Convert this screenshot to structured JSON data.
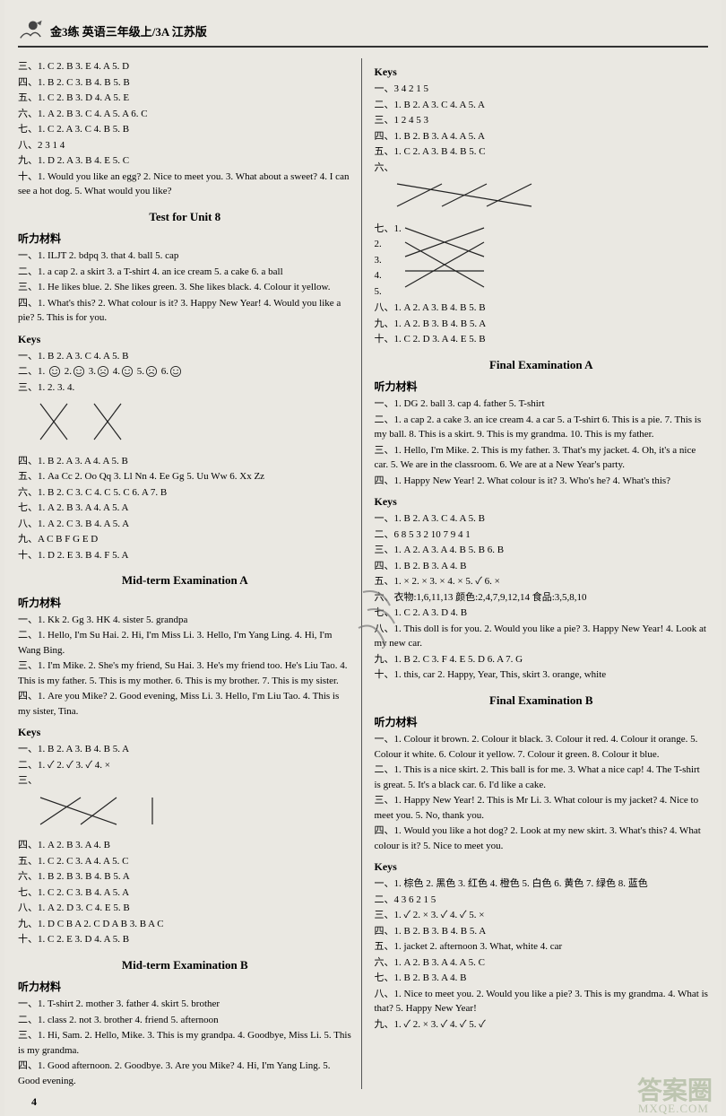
{
  "header": {
    "title": "金3练  英语三年级上/3A  江苏版"
  },
  "left": {
    "block1": [
      "三、1. C  2. B  3. E  4. A  5. D",
      "四、1. B  2. C  3. B  4. B  5. B",
      "五、1. C  2. B  3. D  4. A  5. E",
      "六、1. A  2. B  3. C  4. A  5. A  6. C",
      "七、1. C  2. A  3. C  4. B  5. B",
      "八、2 3 1 4",
      "九、1. D  2. A  3. B  4. E  5. C",
      "十、1. Would you like an egg?   2. Nice to meet you.   3. What about a sweet?   4. I can see a hot dog.   5. What would you like?"
    ],
    "unit8_title": "Test for Unit 8",
    "tl_label": "听力材料",
    "unit8_tl": [
      "一、1. ILJT  2. bdpq  3. that  4. ball  5. cap",
      "二、1. a cap  2. a skirt  3. a T-shirt  4. an ice cream  5. a cake  6. a ball",
      "三、1. He likes blue.   2. She likes green.   3. She likes black.  4. Colour it yellow.",
      "四、1. What's this?   2. What colour is it?   3. Happy New Year!   4. Would you like a pie?   5. This is for you."
    ],
    "keys_label": "Keys",
    "unit8_keys_a": [
      "一、1. B  2. A  3. C  4. A  5. B"
    ],
    "faces_prefix": "二、1.",
    "faces": [
      "happy",
      "happy",
      "sad",
      "happy",
      "sad",
      "happy"
    ],
    "unit8_matching_label": "三、1.  2.  3.  4.",
    "unit8_keys_b": [
      "四、1. B  2. A  3. A  4. A  5. B",
      "五、1. Aa  Cc  2. Oo  Qq  3. Ll  Nn  4. Ee  Gg  5. Uu  Ww  6. Xx  Zz",
      "六、1. B  2. C  3. C  4. C  5. C  6. A  7. B",
      "七、1. A  2. B  3. A  4. A  5. A",
      "八、1. A  2. C  3. B  4. A  5. A",
      "九、A C B F G E D",
      "十、1. D  2. E  3. B  4. F  5. A"
    ],
    "midA_title": "Mid-term Examination A",
    "midA_tl": [
      "一、1. Kk  2. Gg  3. HK  4. sister  5. grandpa",
      "二、1. Hello, I'm Su Hai.   2. Hi, I'm Miss Li.   3. Hello, I'm Yang Ling.   4. Hi, I'm Wang Bing.",
      "三、1. I'm Mike.   2. She's my friend, Su Hai.   3. He's my friend too. He's Liu Tao.   4. This is my father.   5. This is my mother.   6. This is my brother.   7. This is my sister.",
      "四、1. Are you Mike?   2. Good evening, Miss Li.   3. Hello, I'm Liu Tao.   4. This is my sister, Tina."
    ],
    "midA_keys_a": [
      "一、1. B  2. A  3. B  4. B  5. A",
      "二、1. ✓  2. ✓  3. ✓  4. ×"
    ],
    "midA_matching_label": "三、",
    "midA_keys_b": [
      "四、1. A  2. B  3. A  4. B",
      "五、1. C  2. C  3. A  4. A  5. C",
      "六、1. B  2. B  3. B  4. B  5. A",
      "七、1. C  2. C  3. B  4. A  5. A",
      "八、1. A  2. D  3. C  4. E  5. B",
      "九、1. D C B A  2. C D A B  3. B A C",
      "十、1. C  2. E  3. D  4. A  5. B"
    ],
    "midB_title": "Mid-term Examination B",
    "midB_tl": [
      "一、1. T-shirt  2. mother  3. father  4. skirt  5. brother",
      "二、1. class  2. not  3. brother  4. friend  5. afternoon",
      "三、1. Hi, Sam.   2. Hello, Mike.   3. This is my grandpa.  4. Goodbye, Miss Li.   5. This is my grandma.",
      "四、1. Good afternoon.   2. Goodbye.   3. Are you Mike?  4. Hi, I'm Yang Ling.   5. Good evening."
    ]
  },
  "right": {
    "keys_a": [
      "一、3 4 2 1 5",
      "二、1. B  2. A  3. C  4. A  5. A",
      "三、1 2 4 5 3",
      "四、1. B  2. B  3. A  4. A  5. A",
      "五、1. C  2. A  3. B  4. B  5. C"
    ],
    "matching6_label": "六、",
    "matching7_label": "七、1.",
    "matching7_nums": [
      "2.",
      "3.",
      "4.",
      "5."
    ],
    "keys_b": [
      "八、1. A  2. A  3. B  4. B  5. B",
      "九、1. A  2. B  3. B  4. B  5. A",
      "十、1. C  2. D  3. A  4. E  5. B"
    ],
    "finalA_title": "Final Examination A",
    "finalA_tl": [
      "一、1. DG  2. ball  3. cap  4. father  5. T-shirt",
      "二、1. a cap  2. a cake  3. an ice cream  4. a car  5. a T-shirt  6. This is a pie.  7. This is my ball.  8. This is a skirt.  9. This is my grandma.  10. This is my father.",
      "三、1. Hello, I'm Mike.   2. This is my father.   3. That's my jacket.   4. Oh, it's a nice car.   5. We are in the classroom.  6. We are at a New Year's party.",
      "四、1. Happy New Year!   2. What colour is it?   3. Who's he?  4. What's this?"
    ],
    "finalA_keys": [
      "一、1. B  2. A  3. C  4. A  5. B",
      "二、6 8 5 3 2 10 7 9 4 1",
      "三、1. A  2. A  3. A  4. B  5. B  6. B",
      "四、1. B  2. B  3. A  4. B",
      "五、1. ×  2. ×  3. ×  4. ×  5. ✓  6. ×",
      "六、衣物:1,6,11,13  颜色:2,4,7,9,12,14  食品:3,5,8,10",
      "七、1. C  2. A  3. D  4. B",
      "八、1.  This doll is for you.    2.  Would you like a pie?  3. Happy New Year!   4. Look at my new car.",
      "九、1. B  2. C  3. F  4. E  5. D  6. A  7. G",
      "十、1. this, car  2. Happy, Year, This, skirt  3. orange, white"
    ],
    "finalB_title": "Final Examination B",
    "finalB_tl": [
      "一、1. Colour it brown.   2. Colour it black.   3. Colour it red.  4. Colour it orange.   5. Colour it white.   6. Colour it yellow.   7. Colour it green.   8. Colour it blue.",
      "二、1. This is a nice skirt.   2. This ball is for me.   3. What a nice cap!   4. The T-shirt is great.   5. It's a black car.  6. I'd like a cake.",
      "三、1. Happy New Year!   2. This is Mr Li.   3. What colour is my jacket?   4. Nice to meet you.   5. No, thank you.",
      "四、1. Would you like a hot dog?   2. Look at my new skirt.  3. What's this?   4. What colour is it?   5. Nice to meet you."
    ],
    "finalB_keys": [
      "一、1. 棕色  2. 黑色  3. 红色  4. 橙色  5. 白色  6. 黄色  7. 绿色  8. 蓝色",
      "二、4 3 6 2 1 5",
      "三、1. ✓  2. ×  3. ✓  4. ✓  5. ×",
      "四、1. B  2. B  3. B  4. B  5. A",
      "五、1. jacket  2. afternoon  3. What, white  4. car",
      "六、1. A  2. B  3. A  4. A  5. C",
      "七、1. B  2. B  3. A  4. B",
      "八、1. Nice to meet you.   2. Would you like a pie?   3. This is my grandma.   4. What is that?   5. Happy New Year!",
      "九、1. ✓  2. ×  3. ✓  4. ✓  5. ✓"
    ]
  },
  "page_num": "4",
  "watermark": "答案圈",
  "watermark_sub": "MXQE.COM",
  "colors": {
    "bg": "#eae8e2",
    "text": "#222",
    "rule": "#333"
  }
}
